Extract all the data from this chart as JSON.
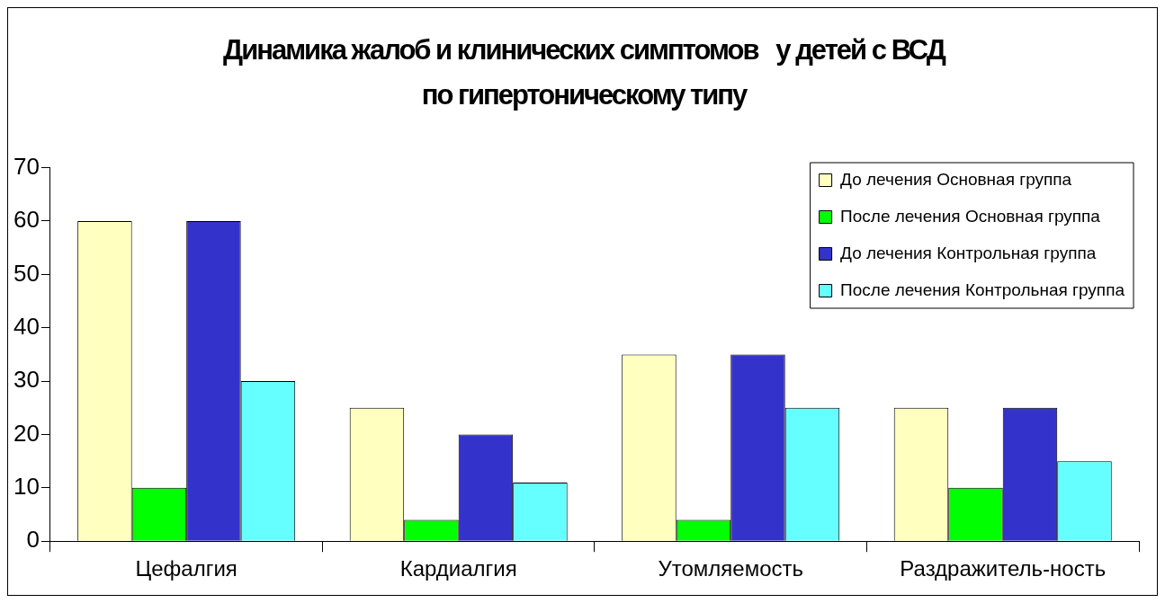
{
  "chart_data": {
    "type": "bar",
    "title": "Динамика жалоб и клинических симптомов   у детей с ВСД по гипертоническому типу",
    "categories": [
      "Цефалгия",
      "Кардиалгия",
      "Утомляемость",
      "Раздражитель-ность"
    ],
    "series": [
      {
        "name": "До лечения Основная группа",
        "color": "#ffffc0",
        "values": [
          60,
          25,
          35,
          25
        ]
      },
      {
        "name": "После лечения Основная группа",
        "color": "#00ff00",
        "values": [
          10,
          4,
          4,
          10
        ]
      },
      {
        "name": "До лечения Контрольная группа",
        "color": "#3333cc",
        "values": [
          60,
          20,
          35,
          25
        ]
      },
      {
        "name": "После лечения Контрольная группа",
        "color": "#66ffff",
        "values": [
          30,
          11,
          25,
          15
        ]
      }
    ],
    "ylim": [
      0,
      70
    ],
    "yticks": [
      0,
      10,
      20,
      30,
      40,
      50,
      60,
      70
    ],
    "grid": false,
    "legend": "top right"
  }
}
